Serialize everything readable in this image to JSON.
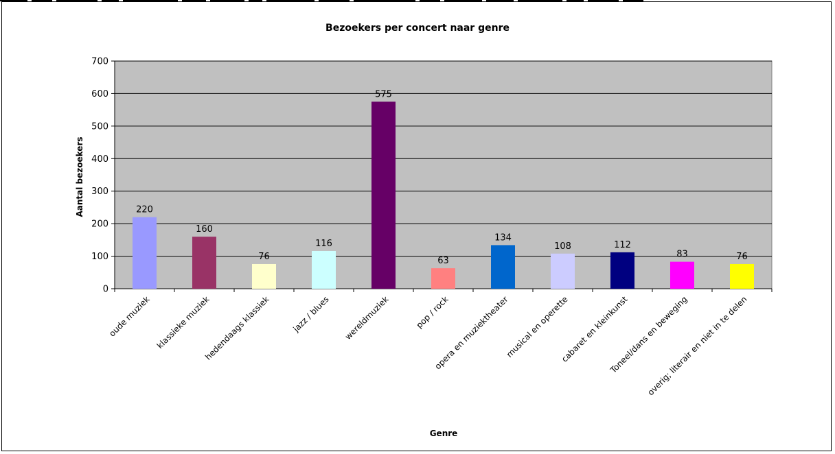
{
  "chart_data": {
    "type": "bar",
    "title": "Bezoekers per concert naar genre",
    "xlabel": "Genre",
    "ylabel": "Aantal bezoekers",
    "ylim": [
      0,
      700
    ],
    "yticks": [
      0,
      100,
      200,
      300,
      400,
      500,
      600,
      700
    ],
    "grid": true,
    "legend": "none",
    "plot_background": "#C0C0C0",
    "categories": [
      "oude muziek",
      "klassieke muziek",
      "hedendaags klassiek",
      "jazz / blues",
      "wereldmuziek",
      "pop / rock",
      "opera en muziektheater",
      "musical en operette",
      "cabaret en kleinkunst",
      "Toneel/dans en beweging",
      "overig; literair en niet in te delen"
    ],
    "values": [
      220,
      160,
      76,
      116,
      575,
      63,
      134,
      108,
      112,
      83,
      76
    ],
    "bar_colors": [
      "#9999FF",
      "#993366",
      "#FFFFCC",
      "#CCFFFF",
      "#660066",
      "#FF8080",
      "#0066CC",
      "#CCCCFF",
      "#000080",
      "#FF00FF",
      "#FFFF00"
    ]
  }
}
